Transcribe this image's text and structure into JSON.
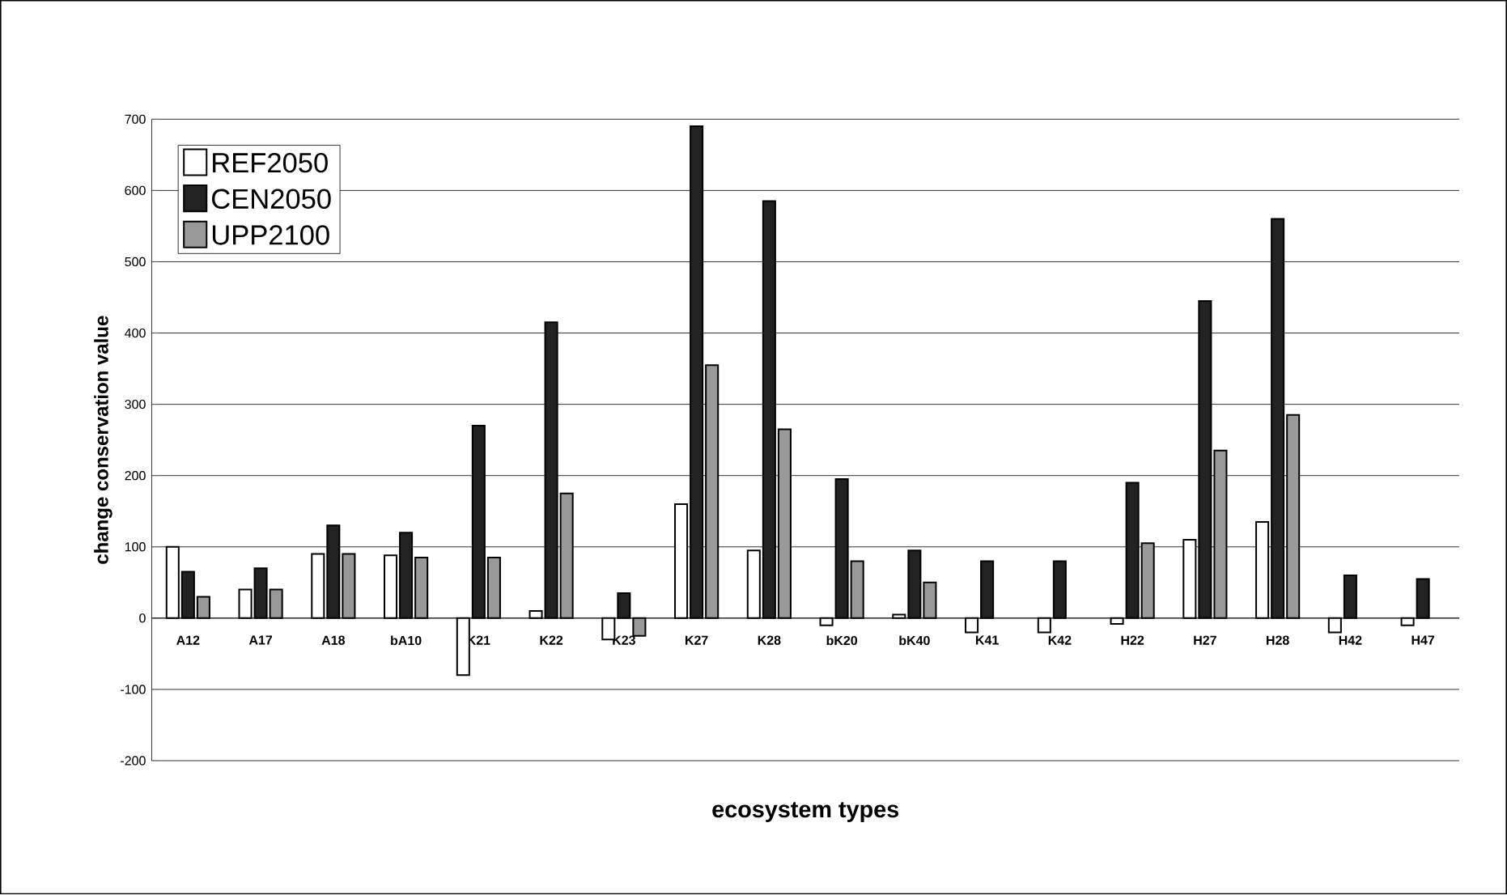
{
  "chart_data": {
    "type": "bar",
    "xlabel": "ecosystem types",
    "ylabel": "change conservation value",
    "categories": [
      "A12",
      "A17",
      "A18",
      "bA10",
      "K21",
      "K22",
      "K23",
      "K27",
      "K28",
      "bK20",
      "bK40",
      "K41",
      "K42",
      "H22",
      "H27",
      "H28",
      "H42",
      "H47"
    ],
    "series": [
      {
        "name": "REF2050",
        "color": "#ffffff",
        "values": [
          100,
          40,
          90,
          88,
          -80,
          10,
          -30,
          160,
          95,
          -10,
          5,
          -20,
          -20,
          -8,
          110,
          135,
          -20,
          -10
        ]
      },
      {
        "name": "CEN2050",
        "color": "#222222",
        "values": [
          65,
          70,
          130,
          120,
          270,
          415,
          35,
          690,
          585,
          195,
          95,
          80,
          80,
          190,
          445,
          560,
          60,
          55
        ]
      },
      {
        "name": "UPP2100",
        "color": "#999999",
        "values": [
          30,
          40,
          90,
          85,
          85,
          175,
          -25,
          355,
          265,
          80,
          50,
          null,
          null,
          105,
          235,
          285,
          null,
          null
        ]
      }
    ],
    "ylim": [
      -200,
      700
    ],
    "yticks": [
      -200,
      -100,
      0,
      100,
      200,
      300,
      400,
      500,
      600,
      700
    ],
    "grid": "y",
    "legend": "top left"
  }
}
